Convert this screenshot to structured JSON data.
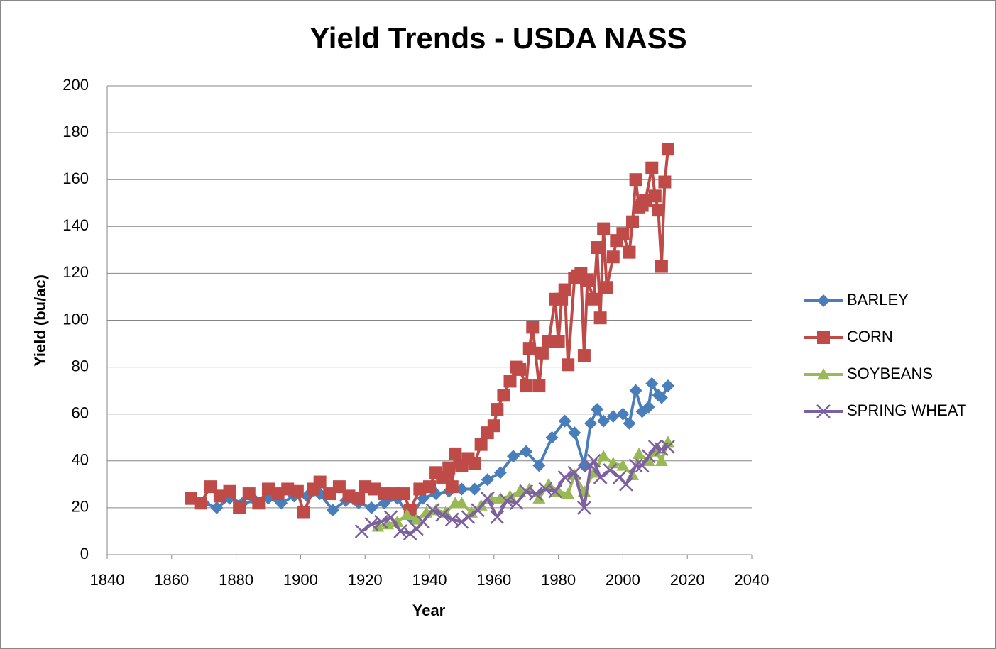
{
  "chart_data": {
    "type": "line",
    "title": "Yield Trends - USDA NASS",
    "xlabel": "Year",
    "ylabel": "Yield (bu/ac)",
    "xlim": [
      1840,
      2040
    ],
    "xticks": [
      1840,
      1860,
      1880,
      1900,
      1920,
      1940,
      1960,
      1980,
      2000,
      2020,
      2040
    ],
    "ylim": [
      0,
      200
    ],
    "yticks": [
      0,
      20,
      40,
      60,
      80,
      100,
      120,
      140,
      160,
      180,
      200
    ],
    "grid": true,
    "legend": "right",
    "series": [
      {
        "name": "BARLEY",
        "color": "#4a7ebb",
        "marker": "diamond",
        "x": [
          1866,
          1870,
          1874,
          1878,
          1882,
          1886,
          1890,
          1894,
          1898,
          1902,
          1906,
          1910,
          1914,
          1918,
          1922,
          1926,
          1930,
          1934,
          1938,
          1942,
          1946,
          1950,
          1954,
          1958,
          1962,
          1966,
          1970,
          1974,
          1978,
          1982,
          1985,
          1988,
          1990,
          1992,
          1994,
          1997,
          2000,
          2002,
          2004,
          2006,
          2008,
          2009,
          2011,
          2012,
          2014
        ],
        "values": [
          24,
          22,
          20,
          24,
          22,
          23,
          24,
          22,
          25,
          25,
          26,
          19,
          23,
          22,
          20,
          22,
          24,
          16,
          24,
          26,
          27,
          28,
          28,
          32,
          35,
          42,
          44,
          38,
          50,
          57,
          52,
          38,
          56,
          62,
          57,
          59,
          60,
          56,
          70,
          61,
          63,
          73,
          68,
          67,
          72
        ]
      },
      {
        "name": "CORN",
        "color": "#be4b48",
        "marker": "square",
        "x": [
          1866,
          1869,
          1872,
          1875,
          1878,
          1881,
          1884,
          1887,
          1890,
          1893,
          1896,
          1899,
          1901,
          1904,
          1906,
          1909,
          1912,
          1915,
          1918,
          1920,
          1923,
          1926,
          1929,
          1932,
          1934,
          1937,
          1940,
          1942,
          1944,
          1946,
          1947,
          1948,
          1950,
          1952,
          1954,
          1956,
          1958,
          1960,
          1961,
          1963,
          1965,
          1967,
          1968,
          1970,
          1971,
          1972,
          1974,
          1975,
          1977,
          1979,
          1980,
          1981,
          1982,
          1983,
          1985,
          1986,
          1987,
          1988,
          1989,
          1991,
          1992,
          1993,
          1994,
          1995,
          1997,
          1998,
          2000,
          2002,
          2003,
          2004,
          2005,
          2006,
          2007,
          2009,
          2010,
          2011,
          2012,
          2013,
          2014
        ],
        "values": [
          24,
          22,
          29,
          25,
          27,
          20,
          26,
          22,
          28,
          26,
          28,
          27,
          18,
          28,
          31,
          26,
          29,
          25,
          24,
          29,
          28,
          26,
          26,
          26,
          19,
          28,
          29,
          35,
          33,
          37,
          29,
          43,
          38,
          41,
          39,
          47,
          52,
          55,
          62,
          68,
          74,
          80,
          79,
          72,
          88,
          97,
          72,
          86,
          91,
          109,
          91,
          109,
          113,
          81,
          118,
          119,
          120,
          85,
          117,
          109,
          131,
          101,
          139,
          114,
          127,
          134,
          137,
          129,
          142,
          160,
          148,
          149,
          151,
          165,
          153,
          147,
          123,
          159,
          173
        ]
      },
      {
        "name": "SOYBEANS",
        "color": "#98b954",
        "marker": "triangle",
        "x": [
          1924,
          1927,
          1930,
          1933,
          1936,
          1939,
          1942,
          1945,
          1948,
          1950,
          1953,
          1956,
          1959,
          1962,
          1965,
          1968,
          1971,
          1974,
          1977,
          1980,
          1983,
          1985,
          1988,
          1991,
          1994,
          1997,
          2000,
          2003,
          2005,
          2008,
          2010,
          2012,
          2014
        ],
        "values": [
          12,
          13,
          14,
          17,
          15,
          18,
          19,
          18,
          22,
          22,
          18,
          21,
          24,
          24,
          25,
          27,
          28,
          24,
          30,
          27,
          26,
          34,
          27,
          35,
          42,
          39,
          38,
          34,
          43,
          40,
          44,
          40,
          48
        ]
      },
      {
        "name": "SPRING WHEAT",
        "color": "#7d60a0",
        "marker": "x",
        "x": [
          1919,
          1922,
          1925,
          1928,
          1931,
          1934,
          1936,
          1938,
          1941,
          1944,
          1947,
          1950,
          1952,
          1955,
          1958,
          1961,
          1964,
          1967,
          1970,
          1973,
          1976,
          1979,
          1982,
          1985,
          1988,
          1990,
          1991,
          1993,
          1996,
          1999,
          2001,
          2004,
          2006,
          2008,
          2010,
          2012,
          2014
        ],
        "values": [
          10,
          13,
          14,
          16,
          10,
          9,
          11,
          14,
          19,
          17,
          15,
          14,
          16,
          19,
          24,
          16,
          23,
          22,
          27,
          26,
          28,
          27,
          33,
          35,
          20,
          38,
          40,
          33,
          36,
          33,
          30,
          38,
          38,
          42,
          46,
          45,
          46
        ]
      }
    ]
  }
}
